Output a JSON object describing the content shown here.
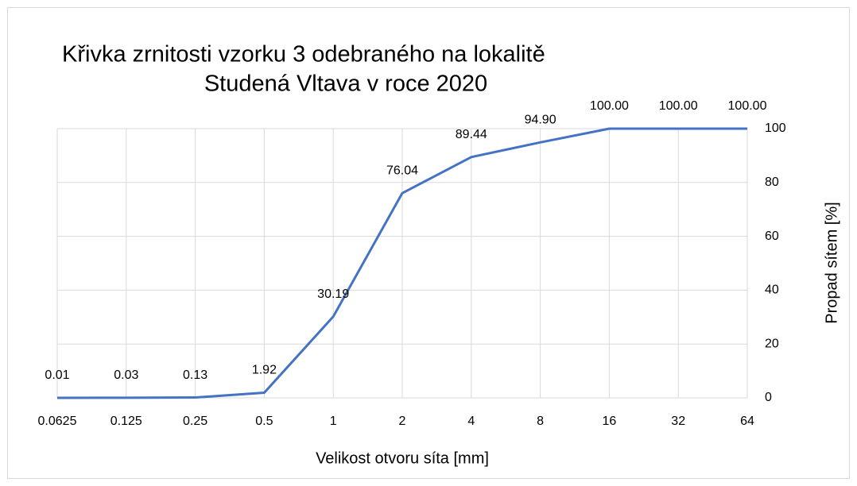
{
  "chart_data": {
    "type": "line",
    "title": [
      "Křivka zrnitosti vzorku 3 odebraného na lokalitě",
      "Studená Vltava v roce 2020"
    ],
    "x_label": "Velikost otvoru síta [mm]",
    "y_label": "Propad sítem [%]",
    "categories": [
      "0.0625",
      "0.125",
      "0.25",
      "0.5",
      "1",
      "2",
      "4",
      "8",
      "16",
      "32",
      "64"
    ],
    "values": [
      0.01,
      0.03,
      0.13,
      1.92,
      30.19,
      76.04,
      89.44,
      94.9,
      100,
      100,
      100
    ],
    "value_labels": [
      "0.01",
      "0.03",
      "0.13",
      "1.92",
      "30.19",
      "76.04",
      "89.44",
      "94.90",
      "100.00",
      "100.00",
      "100.00"
    ],
    "color": "#4472c4",
    "ylim": [
      0,
      100
    ],
    "yticks": [
      0,
      20,
      40,
      60,
      80,
      100
    ],
    "y_axis_side": "right",
    "grid": true
  }
}
